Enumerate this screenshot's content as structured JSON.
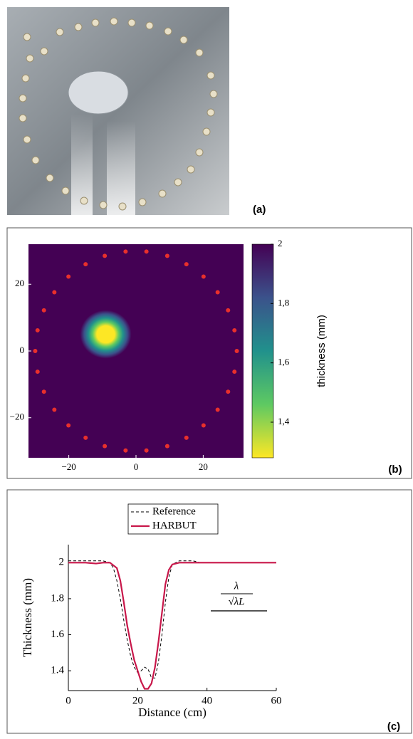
{
  "photo": {
    "label": "(a)"
  },
  "chart_data": [
    {
      "type": "heatmap",
      "label": "(b)",
      "xlim": [
        -32,
        32
      ],
      "ylim": [
        -32,
        32
      ],
      "xticks": [
        {
          "value": -20,
          "label": "−20"
        },
        0,
        20
      ],
      "yticks": [
        {
          "value": -20,
          "label": "−20"
        },
        0,
        20
      ],
      "zlabel": "thickness (mm)",
      "zlim": [
        1.28,
        2
      ],
      "zticks": [
        {
          "value": 1.4,
          "label": "1,4"
        },
        {
          "value": 1.6,
          "label": "1,6"
        },
        {
          "value": 1.8,
          "label": "1,8"
        },
        2
      ],
      "colormap": [
        "#fde725",
        "#5ec962",
        "#21918c",
        "#3b528b",
        "#440154"
      ],
      "defect": {
        "x": -9,
        "y": 5,
        "value": 1.3
      },
      "sensors": {
        "color": "#e8302c",
        "x": [
          30,
          29.3,
          27.4,
          24.3,
          20.1,
          15.0,
          9.3,
          3.1,
          -3.1,
          -9.3,
          -15.0,
          -20.1,
          -24.3,
          -27.4,
          -29.3,
          -30,
          -29.3,
          -27.4,
          -24.3,
          -20.1,
          -15.0,
          -9.3,
          -3.1,
          3.1,
          9.3,
          15.0,
          20.1,
          24.3,
          27.4,
          29.3
        ],
        "y": [
          0,
          6.2,
          12.2,
          17.6,
          22.3,
          26.0,
          28.5,
          29.8,
          29.8,
          28.5,
          26.0,
          22.3,
          17.6,
          12.2,
          6.2,
          0,
          -6.2,
          -12.2,
          -17.6,
          -22.3,
          -26.0,
          -28.5,
          -29.8,
          -29.8,
          -28.5,
          -26.0,
          -22.3,
          -17.6,
          -12.2,
          -6.2
        ]
      }
    },
    {
      "type": "line",
      "label": "(c)",
      "xlabel": "Distance (cm)",
      "ylabel": "Thickness (mm)",
      "xlim": [
        0,
        60
      ],
      "ylim": [
        1.29,
        2.1
      ],
      "xticks": [
        0,
        20,
        40,
        60
      ],
      "yticks": [
        1.4,
        1.6,
        1.8,
        2
      ],
      "legend": "top",
      "annotation": {
        "numerator": "λ",
        "denominator": "√λL"
      },
      "series": [
        {
          "name": "Reference",
          "color": "#000000",
          "dash": true,
          "x": [
            0,
            10,
            12,
            13,
            14,
            15,
            16,
            17,
            18,
            19,
            20,
            21,
            22,
            23,
            24,
            25,
            26,
            27,
            28,
            29,
            30,
            32,
            36,
            38,
            60
          ],
          "values": [
            2.01,
            2.01,
            2.0,
            1.97,
            1.9,
            1.8,
            1.68,
            1.57,
            1.48,
            1.42,
            1.39,
            1.4,
            1.42,
            1.41,
            1.36,
            1.36,
            1.45,
            1.6,
            1.78,
            1.92,
            1.99,
            2.01,
            2.01,
            2.0,
            2.0
          ]
        },
        {
          "name": "HARBUT",
          "color": "#c8174a",
          "dash": false,
          "x": [
            0,
            5,
            8,
            10,
            12,
            14,
            15,
            16,
            17,
            18,
            19,
            20,
            21,
            22,
            23,
            24,
            25,
            26,
            27,
            28,
            29,
            30,
            32,
            40,
            60
          ],
          "values": [
            2,
            2,
            1.995,
            2,
            2,
            1.97,
            1.9,
            1.78,
            1.65,
            1.55,
            1.46,
            1.4,
            1.34,
            1.3,
            1.3,
            1.33,
            1.42,
            1.56,
            1.72,
            1.88,
            1.96,
            1.99,
            2,
            2,
            2
          ]
        }
      ]
    }
  ]
}
